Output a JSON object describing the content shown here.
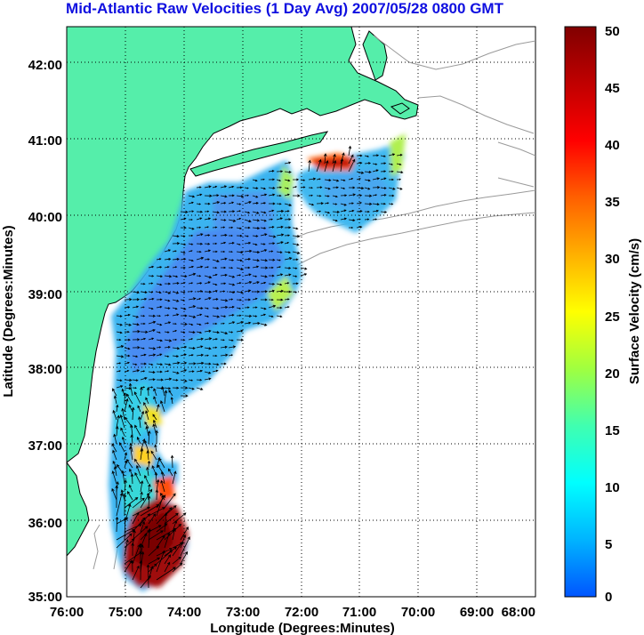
{
  "title": "Mid-Atlantic Raw Velocities (1 Day Avg) 2007/05/28 0800 GMT",
  "x_axis": {
    "label": "Longitude (Degrees:Minutes)",
    "ticks": [
      "76:00",
      "75:00",
      "74:00",
      "73:00",
      "72:00",
      "71:00",
      "70:00",
      "69:00",
      "68:00"
    ]
  },
  "y_axis": {
    "label": "Latitude (Degrees:Minutes)",
    "ticks": [
      "35:00",
      "36:00",
      "37:00",
      "38:00",
      "39:00",
      "40:00",
      "41:00",
      "42:00"
    ]
  },
  "colorbar": {
    "label": "Surface Velocity (cm/s)",
    "ticks": [
      "0",
      "5",
      "10",
      "15",
      "20",
      "25",
      "30",
      "35",
      "40",
      "45",
      "50"
    ],
    "colors": [
      "#0055ff",
      "#00b4ff",
      "#00ffff",
      "#40ffb0",
      "#a0ff40",
      "#ffff00",
      "#ffb000",
      "#ff6000",
      "#ff0000",
      "#c00000",
      "#800000"
    ]
  },
  "legend_colors": {
    "land": "#55eeaa",
    "ocean": "#ffffff",
    "grid": "#000000",
    "arrows": "#000000",
    "title": "#1010e0"
  }
}
